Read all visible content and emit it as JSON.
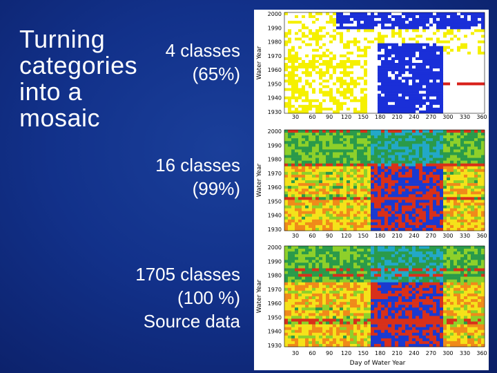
{
  "slide": {
    "title": "Turning\ncategories\ninto a\nmosaic"
  },
  "captions": [
    {
      "line1": "4 classes",
      "line2": "(65%)"
    },
    {
      "line1": "16 classes",
      "line2": "(99%)"
    },
    {
      "line1": "1705 classes",
      "line2": "(100 %)",
      "line3": "Source data"
    }
  ],
  "chart_data": [
    {
      "type": "heatmap",
      "ylabel": "Water Year",
      "y_ticks": [
        "2000",
        "1990",
        "1980",
        "1970",
        "1960",
        "1950",
        "1940",
        "1930"
      ],
      "x_ticks": [
        "30",
        "60",
        "90",
        "120",
        "150",
        "180",
        "210",
        "240",
        "270",
        "300",
        "330",
        "360"
      ],
      "colors": [
        "#ffffff",
        "#f5f000",
        "#1a2fd8",
        "#d8201a"
      ]
    },
    {
      "type": "heatmap",
      "ylabel": "Water Year",
      "y_ticks": [
        "2000",
        "1990",
        "1980",
        "1970",
        "1960",
        "1950",
        "1940",
        "1930"
      ],
      "x_ticks": [
        "30",
        "60",
        "90",
        "120",
        "150",
        "180",
        "210",
        "240",
        "270",
        "300",
        "330",
        "360"
      ],
      "colors": [
        "#f08a1a",
        "#f5e21a",
        "#8ed02a",
        "#2a9a4a",
        "#22a8c8",
        "#1a3ad0",
        "#d8301a"
      ]
    },
    {
      "type": "heatmap",
      "ylabel": "Water Year",
      "xlabel": "Day of Water Year",
      "y_ticks": [
        "2000",
        "1990",
        "1980",
        "1970",
        "1960",
        "1950",
        "1940",
        "1930"
      ],
      "x_ticks": [
        "30",
        "60",
        "90",
        "120",
        "150",
        "180",
        "210",
        "240",
        "270",
        "300",
        "330",
        "360"
      ],
      "colors": [
        "#f08a1a",
        "#f5e21a",
        "#8ed02a",
        "#2a9a4a",
        "#22a8c8",
        "#1a3ad0",
        "#d8301a"
      ]
    }
  ]
}
